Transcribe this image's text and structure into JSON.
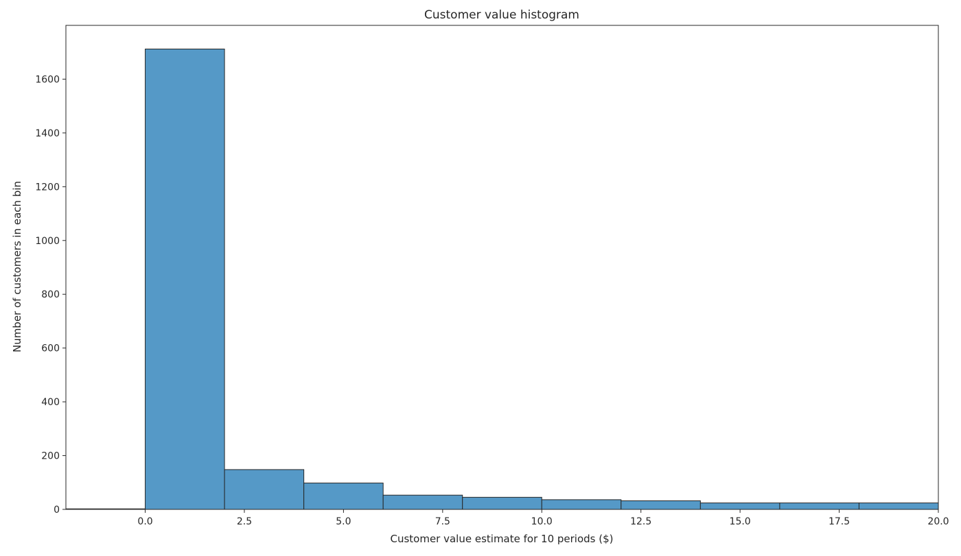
{
  "chart_data": {
    "type": "bar",
    "title": "Customer value histogram",
    "xlabel": "Customer value estimate for 10 periods ($)",
    "ylabel": "Number of customers in each bin",
    "xlim": [
      -2.0,
      20.0
    ],
    "ylim": [
      0,
      1800
    ],
    "xticks": [
      0.0,
      2.5,
      5.0,
      7.5,
      10.0,
      12.5,
      15.0,
      17.5,
      20.0
    ],
    "xtick_labels": [
      "0.0",
      "2.5",
      "5.0",
      "7.5",
      "10.0",
      "12.5",
      "15.0",
      "17.5",
      "20.0"
    ],
    "yticks": [
      0,
      200,
      400,
      600,
      800,
      1000,
      1200,
      1400,
      1600
    ],
    "ytick_labels": [
      "0",
      "200",
      "400",
      "600",
      "800",
      "1000",
      "1200",
      "1400",
      "1600"
    ],
    "bins": [
      {
        "start": -2.0,
        "end": 0.0,
        "count": 2
      },
      {
        "start": 0.0,
        "end": 2.0,
        "count": 1712
      },
      {
        "start": 2.0,
        "end": 4.0,
        "count": 148
      },
      {
        "start": 4.0,
        "end": 6.0,
        "count": 98
      },
      {
        "start": 6.0,
        "end": 8.0,
        "count": 53
      },
      {
        "start": 8.0,
        "end": 10.0,
        "count": 45
      },
      {
        "start": 10.0,
        "end": 12.0,
        "count": 36
      },
      {
        "start": 12.0,
        "end": 14.0,
        "count": 32
      },
      {
        "start": 14.0,
        "end": 16.0,
        "count": 24
      },
      {
        "start": 16.0,
        "end": 18.0,
        "count": 24
      },
      {
        "start": 18.0,
        "end": 20.0,
        "count": 24
      }
    ],
    "grid": false,
    "legend": false,
    "colors": {
      "bar_fill": "#5599c7",
      "bar_edge": "#262626",
      "axis": "#262626"
    }
  }
}
